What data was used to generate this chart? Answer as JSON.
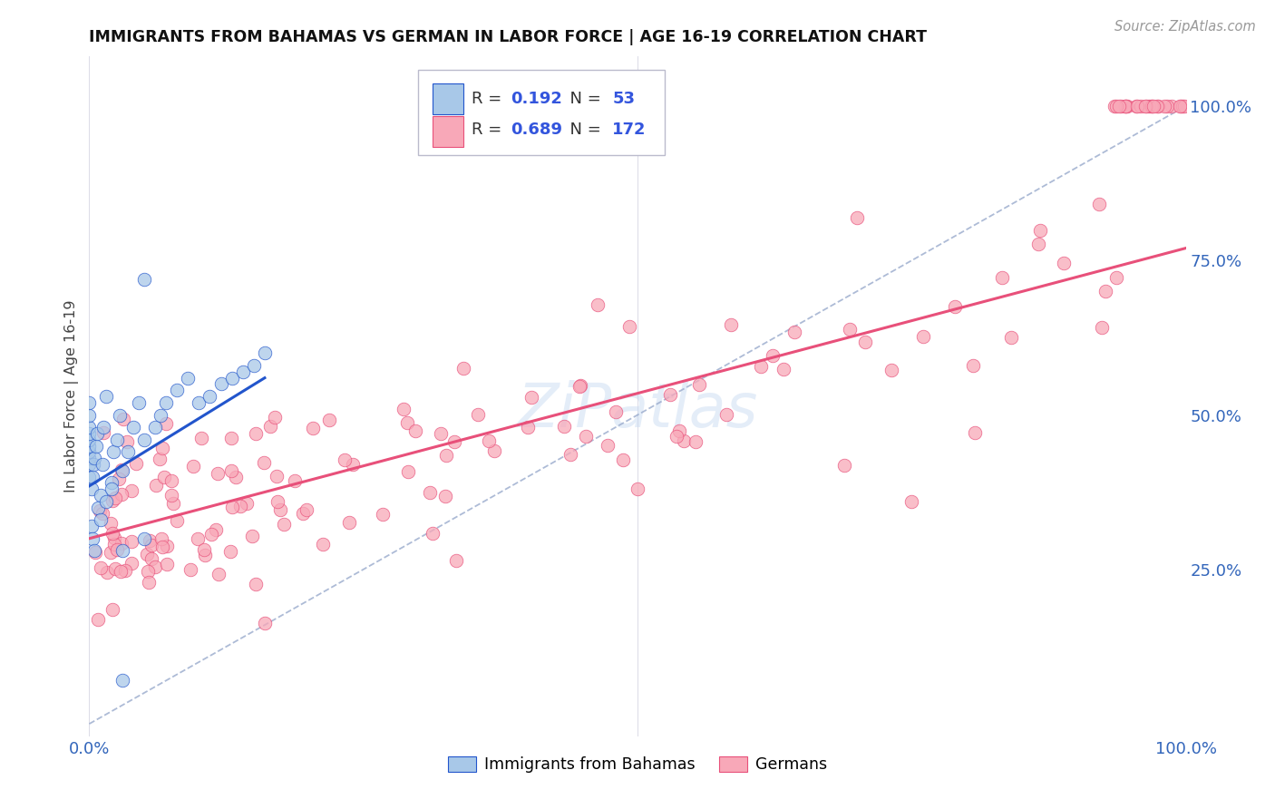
{
  "title": "IMMIGRANTS FROM BAHAMAS VS GERMAN IN LABOR FORCE | AGE 16-19 CORRELATION CHART",
  "source": "Source: ZipAtlas.com",
  "ylabel": "In Labor Force | Age 16-19",
  "xlim": [
    0.0,
    1.0
  ],
  "ylim": [
    -0.02,
    1.08
  ],
  "y_tick_labels_right": [
    "25.0%",
    "50.0%",
    "75.0%",
    "100.0%"
  ],
  "y_tick_vals_right": [
    0.25,
    0.5,
    0.75,
    1.0
  ],
  "legend_r_bahamas": "0.192",
  "legend_n_bahamas": "53",
  "legend_r_german": "0.689",
  "legend_n_german": "172",
  "color_bahamas": "#a8c8e8",
  "color_german": "#f8a8b8",
  "color_trendline_bahamas": "#2255cc",
  "color_trendline_german": "#e8507a",
  "color_diagonal": "#99aacc",
  "watermark": "ZiPatlas",
  "bahamas_trend_x": [
    0.0,
    0.16
  ],
  "bahamas_trend_y": [
    0.385,
    0.56
  ],
  "german_trend_x": [
    0.0,
    1.0
  ],
  "german_trend_y": [
    0.3,
    0.77
  ]
}
